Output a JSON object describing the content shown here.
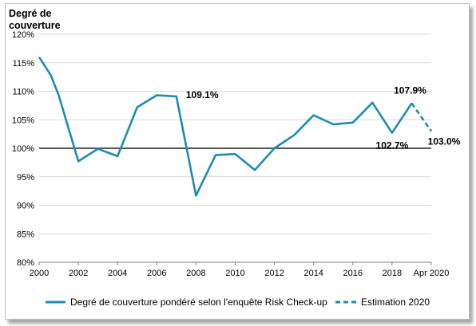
{
  "chart_data": {
    "type": "line",
    "ylabel": [
      "Degré de",
      "couverture"
    ],
    "ylim": [
      80,
      120
    ],
    "yticks": [
      80,
      85,
      90,
      95,
      100,
      105,
      110,
      115,
      120
    ],
    "yticklabels": [
      "80%",
      "85%",
      "90%",
      "95%",
      "100%",
      "105%",
      "110%",
      "115%",
      "120%"
    ],
    "xlim": [
      2000,
      2020
    ],
    "xticks": [
      2000,
      2002,
      2004,
      2006,
      2008,
      2010,
      2012,
      2014,
      2016,
      2018,
      2020
    ],
    "xticklabels": [
      "2000",
      "2002",
      "2004",
      "2006",
      "2008",
      "2010",
      "2012",
      "2014",
      "2016",
      "2018",
      "Apr 2020"
    ],
    "grid": true,
    "reference_line": 100,
    "colors": {
      "series": "#1e8bb4",
      "grid": "#d9d9d9",
      "axis": "#7f7f7f",
      "reference": "#595959"
    },
    "series": [
      {
        "name": "Degré de couverture pondéré selon l'enquête Risk Check-up",
        "style": "solid",
        "x": [
          2000,
          2000.6,
          2001,
          2002,
          2003,
          2004,
          2005,
          2006,
          2007,
          2008,
          2009,
          2010,
          2011,
          2012,
          2013,
          2014,
          2015,
          2016,
          2017,
          2018,
          2019
        ],
        "values": [
          116,
          112.8,
          109.3,
          97.7,
          99.9,
          98.6,
          107.2,
          109.3,
          109.1,
          91.7,
          98.8,
          99.0,
          96.2,
          100.0,
          102.3,
          105.8,
          104.2,
          104.5,
          108.0,
          102.7,
          107.9
        ]
      },
      {
        "name": "Estimation 2020",
        "style": "dashed",
        "x": [
          2019,
          2020
        ],
        "values": [
          107.9,
          103.0
        ]
      }
    ],
    "annotations": [
      {
        "text": "109.1%",
        "x": 2007,
        "y": 109.1
      },
      {
        "text": "107.9%",
        "x": 2019,
        "y": 107.9
      },
      {
        "text": "102.7%",
        "x": 2018,
        "y": 102.7
      },
      {
        "text": "103.0%",
        "x": 2020,
        "y": 103.0
      }
    ],
    "legend_position": "bottom"
  }
}
